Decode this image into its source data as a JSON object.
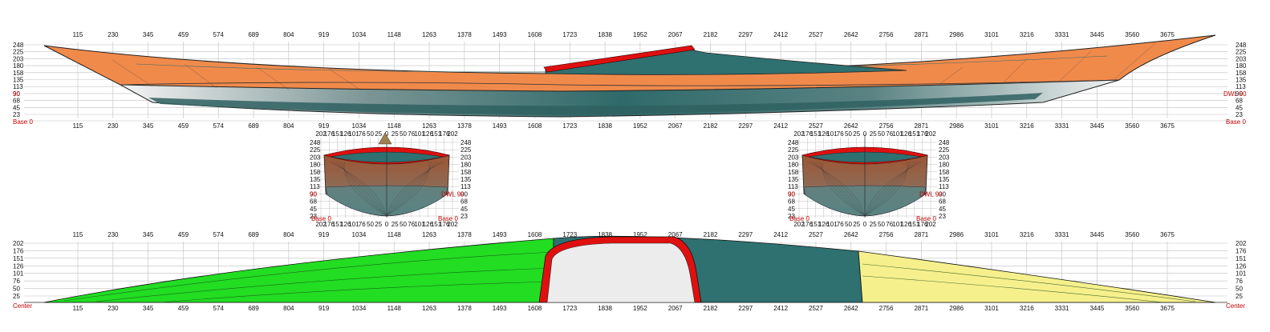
{
  "station_ticks": [
    "115",
    "230",
    "345",
    "459",
    "574",
    "689",
    "804",
    "919",
    "1034",
    "1148",
    "1263",
    "1378",
    "1493",
    "1608",
    "1723",
    "1838",
    "1952",
    "2067",
    "2182",
    "2297",
    "2412",
    "2527",
    "2642",
    "2756",
    "2871",
    "2986",
    "3101",
    "3216",
    "3331",
    "3445",
    "3560",
    "3675"
  ],
  "profile_heights": [
    "248",
    "225",
    "203",
    "180",
    "158",
    "135",
    "113",
    "90",
    "68",
    "45",
    "23"
  ],
  "plan_heights": [
    "202",
    "176",
    "151",
    "126",
    "101",
    "76",
    "50",
    "25"
  ],
  "section_heights": [
    "248",
    "225",
    "203",
    "180",
    "158",
    "135",
    "113",
    "90",
    "68",
    "45",
    "23"
  ],
  "section_top_ticks": [
    "202",
    "176",
    "151",
    "126",
    "101",
    "76",
    "50",
    "25",
    "0",
    "25",
    "50",
    "76",
    "101",
    "126",
    "151",
    "176",
    "202"
  ],
  "labels": {
    "dwl": "DWL 90",
    "dwl_short": "90",
    "base": "Base 0",
    "base_short": "0",
    "center": "Center",
    "center_short": "0"
  },
  "colors": {
    "deck": "#f08a4b",
    "hull_dark": "#2f7070",
    "hull_light": "#e6e8e8",
    "cockpit_rim": "#e01010",
    "plan_bow": "#22dd22",
    "plan_stern": "#f6f08c",
    "section_brown": "#a0522d",
    "grid": "#bfbfbf"
  }
}
